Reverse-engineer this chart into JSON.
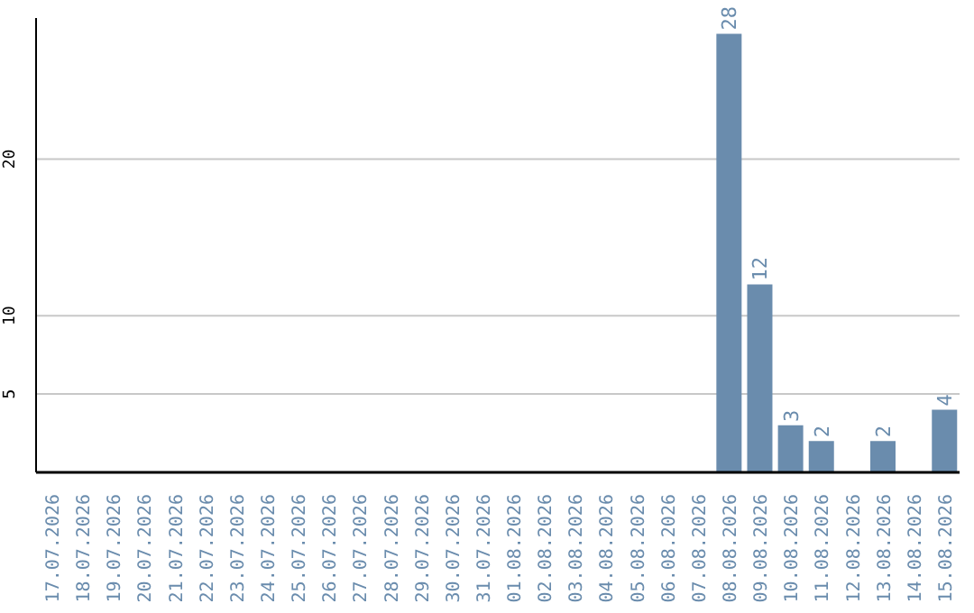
{
  "chart_data": {
    "type": "bar",
    "categories": [
      "17.07.2026",
      "18.07.2026",
      "19.07.2026",
      "20.07.2026",
      "21.07.2026",
      "22.07.2026",
      "23.07.2026",
      "24.07.2026",
      "25.07.2026",
      "26.07.2026",
      "27.07.2026",
      "28.07.2026",
      "29.07.2026",
      "30.07.2026",
      "31.07.2026",
      "01.08.2026",
      "02.08.2026",
      "03.08.2026",
      "04.08.2026",
      "05.08.2026",
      "06.08.2026",
      "07.08.2026",
      "08.08.2026",
      "09.08.2026",
      "10.08.2026",
      "11.08.2026",
      "12.08.2026",
      "13.08.2026",
      "14.08.2026",
      "15.08.2026"
    ],
    "values": [
      null,
      null,
      null,
      null,
      null,
      null,
      null,
      null,
      null,
      null,
      null,
      null,
      null,
      null,
      null,
      null,
      null,
      null,
      null,
      null,
      null,
      null,
      28,
      12,
      3,
      2,
      null,
      2,
      null,
      4
    ],
    "color": "#6a8cad",
    "ylim": [
      0,
      29
    ],
    "yticks": [
      5,
      10,
      20
    ],
    "grid": "y",
    "data_labels": true
  }
}
